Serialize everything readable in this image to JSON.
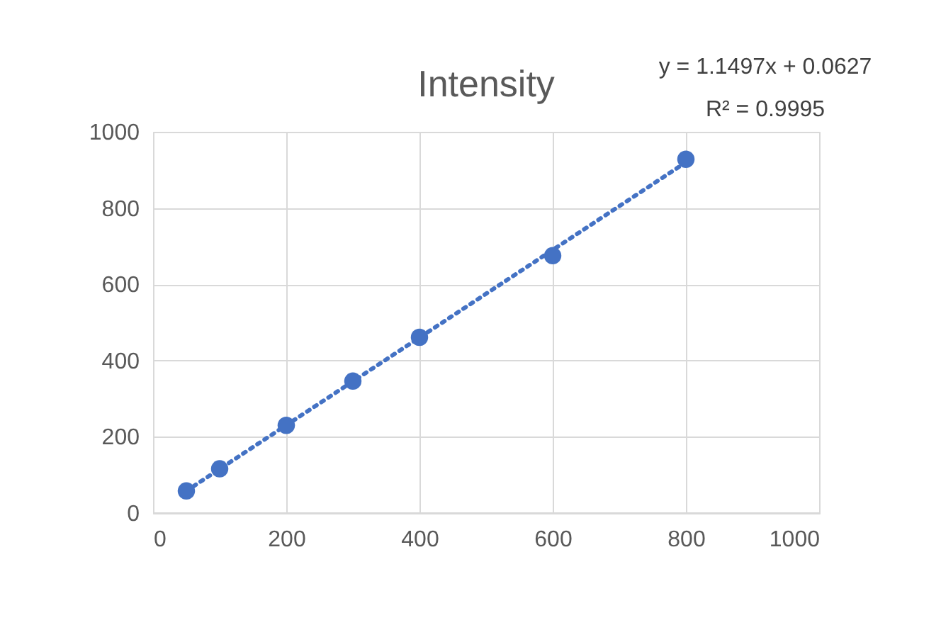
{
  "chart_data": {
    "type": "scatter",
    "title": "Intensity",
    "annotations": [
      "y = 1.1497x + 0.0627",
      "R² = 0.9995"
    ],
    "x": [
      50,
      100,
      200,
      300,
      400,
      600,
      800
    ],
    "series": [
      {
        "color": "#4472c4",
        "values": [
          58,
          116,
          230,
          346,
          461,
          675,
          928
        ]
      },
      {
        "type": "line",
        "marker": "none",
        "color": "#4472c4",
        "x": [
          50,
          800
        ],
        "values": [
          58,
          920
        ]
      }
    ],
    "xlim": [
      0,
      1000
    ],
    "xticks": [
      0,
      200,
      400,
      600,
      800,
      1000
    ],
    "ylim": [
      0,
      1000
    ],
    "yticks": [
      0,
      200,
      400,
      600,
      800,
      1000
    ],
    "grid": true,
    "marker": "circle",
    "line_style": "dotted"
  }
}
